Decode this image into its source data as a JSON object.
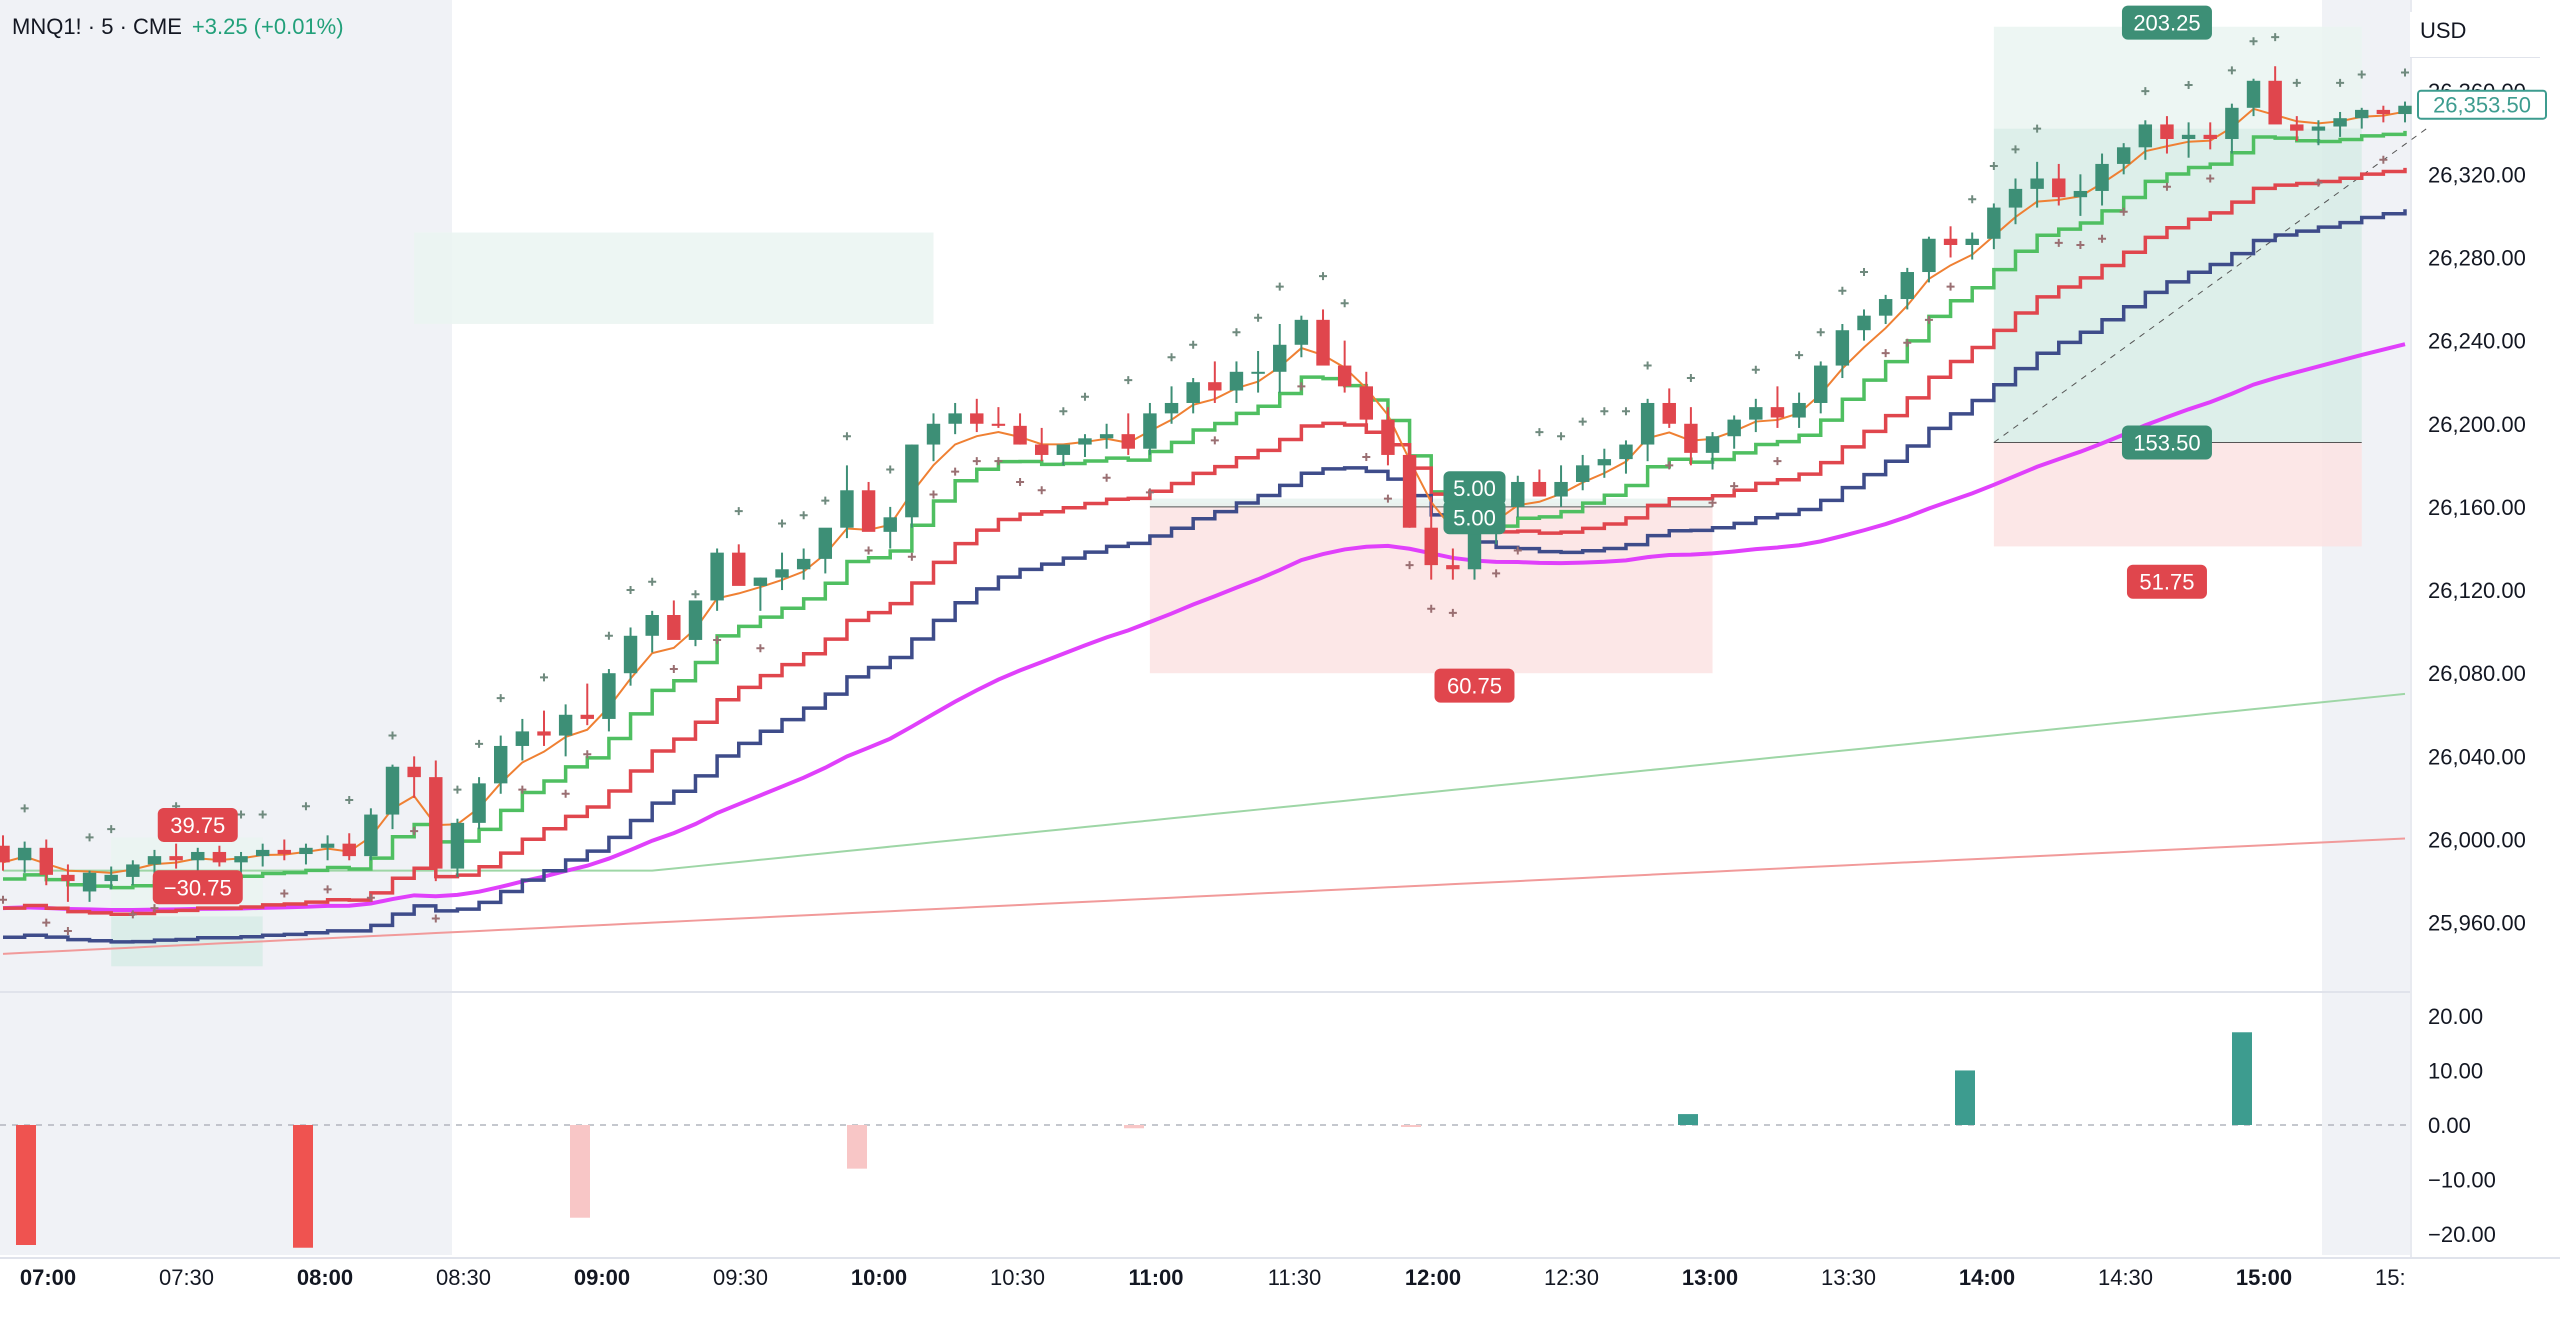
{
  "header": {
    "symbol": "MNQ1! · 5 · CME",
    "change": "+3.25 (+0.01%)"
  },
  "currency": "USD",
  "colors": {
    "bull": "#3d8f76",
    "bear": "#e0464d",
    "vwap": "#e040fb",
    "ema_orange": "#ef8033",
    "stair_green": "#4fbf61",
    "stair_red": "#e0464d",
    "stair_blue": "#3e4c8a",
    "sma_green": "#9ed6a6",
    "sma_red": "#f19a9a",
    "dots": "#6b7280",
    "session_shade": "#f0f2f6",
    "profit_zone": "#d7ece6",
    "loss_zone": "#fbe3e3"
  },
  "chart_data": [
    {
      "type": "candlestick",
      "pane": "price",
      "x_axis": {
        "ticks": [
          "07:00",
          "07:30",
          "08:00",
          "08:30",
          "09:00",
          "09:30",
          "10:00",
          "10:30",
          "11:00",
          "11:30",
          "12:00",
          "12:30",
          "13:00",
          "13:30",
          "14:00",
          "14:30",
          "15:00",
          "15:"
        ],
        "bold_ticks": [
          "07:00",
          "08:00",
          "09:00",
          "10:00",
          "11:00",
          "12:00",
          "13:00",
          "14:00",
          "15:00"
        ]
      },
      "y_axis": {
        "ticks": [
          "26,360.00",
          "26,320.00",
          "26,280.00",
          "26,240.00",
          "26,200.00",
          "26,160.00",
          "26,120.00",
          "26,080.00",
          "26,040.00",
          "26,000.00",
          "25,960.00"
        ],
        "range": [
          25930,
          26375
        ]
      },
      "last_price": "26,353.50",
      "candles_ohlc": [
        [
          25997,
          26002,
          25985,
          25989
        ],
        [
          25990,
          25999,
          25984,
          25996
        ],
        [
          25996,
          26000,
          25978,
          25983
        ],
        [
          25983,
          25988,
          25970,
          25980
        ],
        [
          25975,
          25985,
          25970,
          25984
        ],
        [
          25980,
          25987,
          25976,
          25983
        ],
        [
          25982,
          25990,
          25978,
          25988
        ],
        [
          25988,
          25995,
          25983,
          25992
        ],
        [
          25992,
          25998,
          25986,
          25990
        ],
        [
          25990,
          25996,
          25985,
          25994
        ],
        [
          25994,
          25997,
          25987,
          25989
        ],
        [
          25989,
          25994,
          25984,
          25992
        ],
        [
          25992,
          25998,
          25987,
          25995
        ],
        [
          25995,
          26000,
          25990,
          25993
        ],
        [
          25993,
          25998,
          25988,
          25996
        ],
        [
          25996,
          26002,
          25990,
          25998
        ],
        [
          25998,
          26003,
          25990,
          25992
        ],
        [
          25992,
          26015,
          25990,
          26012
        ],
        [
          26012,
          26036,
          26005,
          26035
        ],
        [
          26035,
          26040,
          26020,
          26030
        ],
        [
          26030,
          26038,
          25980,
          25986
        ],
        [
          25986,
          26010,
          25982,
          26008
        ],
        [
          26008,
          26030,
          26005,
          26027
        ],
        [
          26027,
          26050,
          26022,
          26045
        ],
        [
          26045,
          26058,
          26038,
          26052
        ],
        [
          26052,
          26062,
          26045,
          26050
        ],
        [
          26050,
          26065,
          26040,
          26060
        ],
        [
          26060,
          26075,
          26055,
          26058
        ],
        [
          26058,
          26082,
          26052,
          26080
        ],
        [
          26080,
          26102,
          26074,
          26098
        ],
        [
          26098,
          26110,
          26090,
          26108
        ],
        [
          26108,
          26115,
          26098,
          26096
        ],
        [
          26096,
          26100,
          26093,
          26115
        ],
        [
          26115,
          26140,
          26110,
          26138
        ],
        [
          26138,
          26142,
          26125,
          26122
        ],
        [
          26122,
          26126,
          26110,
          26126
        ],
        [
          26126,
          26138,
          26120,
          26130
        ],
        [
          26130,
          26140,
          26125,
          26135
        ],
        [
          26135,
          26145,
          26128,
          26150
        ],
        [
          26150,
          26180,
          26145,
          26168
        ],
        [
          26168,
          26172,
          26155,
          26148
        ],
        [
          26148,
          26160,
          26140,
          26155
        ],
        [
          26155,
          26190,
          26150,
          26190
        ],
        [
          26190,
          26205,
          26182,
          26200
        ],
        [
          26200,
          26210,
          26195,
          26205
        ],
        [
          26205,
          26212,
          26196,
          26200
        ],
        [
          26200,
          26208,
          26198,
          26199
        ],
        [
          26199,
          26205,
          26190,
          26190
        ],
        [
          26190,
          26198,
          26182,
          26185
        ],
        [
          26185,
          26190,
          26180,
          26190
        ],
        [
          26190,
          26195,
          26184,
          26193
        ],
        [
          26193,
          26200,
          26188,
          26195
        ],
        [
          26195,
          26205,
          26185,
          26188
        ],
        [
          26188,
          26210,
          26185,
          26205
        ],
        [
          26205,
          26218,
          26200,
          26210
        ],
        [
          26210,
          26222,
          26205,
          26220
        ],
        [
          26220,
          26230,
          26210,
          26216
        ],
        [
          26216,
          26230,
          26210,
          26225
        ],
        [
          26225,
          26235,
          26215,
          26225
        ],
        [
          26225,
          26248,
          26215,
          26238
        ],
        [
          26238,
          26252,
          26232,
          26250
        ],
        [
          26250,
          26255,
          26230,
          26228
        ],
        [
          26228,
          26240,
          26215,
          26218
        ],
        [
          26218,
          26225,
          26198,
          26202
        ],
        [
          26202,
          26208,
          26180,
          26185
        ],
        [
          26185,
          26190,
          26150,
          26150
        ],
        [
          26150,
          26165,
          26125,
          26132
        ],
        [
          26132,
          26140,
          26125,
          26130
        ],
        [
          26130,
          26155,
          26125,
          26148
        ],
        [
          26148,
          26160,
          26142,
          26160
        ],
        [
          26160,
          26175,
          26155,
          26172
        ],
        [
          26172,
          26178,
          26165,
          26165
        ],
        [
          26165,
          26180,
          26160,
          26172
        ],
        [
          26172,
          26185,
          26168,
          26180
        ],
        [
          26180,
          26188,
          26174,
          26183
        ],
        [
          26183,
          26192,
          26176,
          26190
        ],
        [
          26190,
          26212,
          26182,
          26210
        ],
        [
          26210,
          26217,
          26198,
          26200
        ],
        [
          26200,
          26208,
          26180,
          26186
        ],
        [
          26186,
          26196,
          26178,
          26194
        ],
        [
          26194,
          26204,
          26188,
          26202
        ],
        [
          26202,
          26212,
          26196,
          26208
        ],
        [
          26208,
          26218,
          26198,
          26203
        ],
        [
          26203,
          26215,
          26198,
          26210
        ],
        [
          26210,
          26230,
          26205,
          26228
        ],
        [
          26228,
          26248,
          26222,
          26245
        ],
        [
          26245,
          26255,
          26240,
          26252
        ],
        [
          26252,
          26262,
          26248,
          26260
        ],
        [
          26260,
          26275,
          26255,
          26273
        ],
        [
          26273,
          26290,
          26268,
          26289
        ],
        [
          26289,
          26295,
          26280,
          26286
        ],
        [
          26286,
          26292,
          26279,
          26289
        ],
        [
          26289,
          26306,
          26284,
          26304
        ],
        [
          26304,
          26318,
          26296,
          26313
        ],
        [
          26313,
          26326,
          26304,
          26318
        ],
        [
          26318,
          26325,
          26305,
          26309
        ],
        [
          26309,
          26320,
          26300,
          26312
        ],
        [
          26312,
          26330,
          26305,
          26325
        ],
        [
          26325,
          26335,
          26320,
          26333
        ],
        [
          26333,
          26346,
          26327,
          26344
        ],
        [
          26344,
          26348,
          26330,
          26337
        ],
        [
          26337,
          26345,
          26328,
          26339
        ],
        [
          26339,
          26345,
          26332,
          26337
        ],
        [
          26337,
          26354,
          26330,
          26352
        ],
        [
          26352,
          26366,
          26348,
          26365
        ],
        [
          26365,
          26372,
          26350,
          26344
        ],
        [
          26344,
          26348,
          26336,
          26341
        ],
        [
          26341,
          26346,
          26334,
          26343
        ],
        [
          26343,
          26350,
          26338,
          26347
        ],
        [
          26347,
          26352,
          26342,
          26351
        ],
        [
          26351,
          26353,
          26345,
          26349
        ],
        [
          26349,
          26355,
          26345,
          26353
        ]
      ],
      "annotations": [
        {
          "label": "39.75",
          "kind": "loss"
        },
        {
          "label": "−30.75",
          "kind": "loss"
        },
        {
          "label": "5.00",
          "kind": "profit"
        },
        {
          "label": "5.00",
          "kind": "profit"
        },
        {
          "label": "60.75",
          "kind": "loss"
        },
        {
          "label": "203.25",
          "kind": "profit"
        },
        {
          "label": "153.50",
          "kind": "profit"
        },
        {
          "label": "51.75",
          "kind": "loss"
        }
      ]
    },
    {
      "type": "bar",
      "pane": "histogram",
      "y_axis": {
        "ticks": [
          "20.00",
          "10.00",
          "0.00",
          "−10.00",
          "−20.00"
        ],
        "range": [
          -22,
          22
        ]
      },
      "bars": [
        {
          "x": "07:00",
          "value": -22,
          "style": "strong-red"
        },
        {
          "x": "08:00",
          "value": -22.5,
          "style": "strong-red"
        },
        {
          "x": "09:00",
          "value": -17,
          "style": "light-red"
        },
        {
          "x": "10:00",
          "value": -8,
          "style": "light-red"
        },
        {
          "x": "11:00",
          "value": -0.6,
          "style": "light-red"
        },
        {
          "x": "12:00",
          "value": -0.2,
          "style": "light-red"
        },
        {
          "x": "13:00",
          "value": 2,
          "style": "teal"
        },
        {
          "x": "14:00",
          "value": 10,
          "style": "teal"
        },
        {
          "x": "15:00",
          "value": 17,
          "style": "teal"
        }
      ]
    }
  ]
}
